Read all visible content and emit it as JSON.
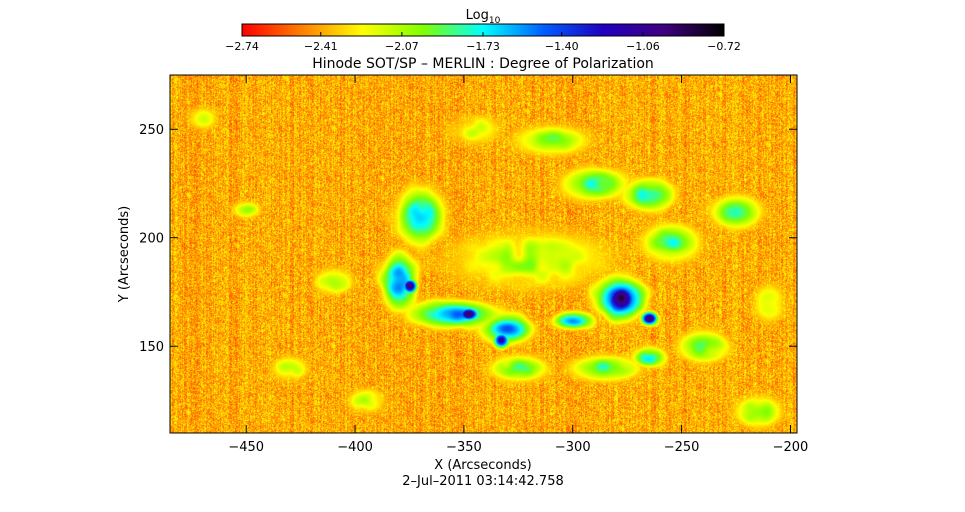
{
  "chart_data": {
    "type": "heatmap",
    "title": "Hinode SOT/SP – MERLIN : Degree of Polarization",
    "xlabel": "X (Arcseconds)",
    "ylabel": "Y (Arcseconds)",
    "xlim": [
      -485,
      -197
    ],
    "ylim": [
      110,
      275
    ],
    "x_ticks": [
      -450,
      -400,
      -350,
      -300,
      -250,
      -200
    ],
    "x_tick_labels": [
      "−450",
      "−400",
      "−350",
      "−300",
      "−250",
      "−200"
    ],
    "y_ticks": [
      150,
      200,
      250
    ],
    "y_tick_labels": [
      "150",
      "200",
      "250"
    ],
    "colorbar": {
      "label_main": "Log",
      "label_sub": "10",
      "placement": "top",
      "min": -2.74,
      "max": -0.72,
      "tick_values": [
        -2.74,
        -2.41,
        -2.07,
        -1.73,
        -1.4,
        -1.06,
        -0.72
      ],
      "tick_labels": [
        "−2.74",
        "−2.41",
        "−2.07",
        "−1.73",
        "−1.40",
        "−1.06",
        "−0.72"
      ],
      "colors": [
        "#ff0000",
        "#ff8000",
        "#ffff00",
        "#80ff00",
        "#00ffff",
        "#0060ff",
        "#2000c0",
        "#400080",
        "#000000"
      ]
    },
    "features": [
      {
        "x": -320,
        "y": 190,
        "rx": 55,
        "ry": 20,
        "level": 0.32
      },
      {
        "x": -370,
        "y": 210,
        "rx": 14,
        "ry": 16,
        "level": 0.55
      },
      {
        "x": -380,
        "y": 180,
        "rx": 10,
        "ry": 16,
        "level": 0.62
      },
      {
        "x": -375,
        "y": 178,
        "rx": 4,
        "ry": 4,
        "level": 0.9
      },
      {
        "x": -355,
        "y": 165,
        "rx": 25,
        "ry": 8,
        "level": 0.58
      },
      {
        "x": -348,
        "y": 165,
        "rx": 6,
        "ry": 4,
        "level": 0.85
      },
      {
        "x": -330,
        "y": 158,
        "rx": 14,
        "ry": 8,
        "level": 0.62
      },
      {
        "x": -333,
        "y": 153,
        "rx": 4,
        "ry": 4,
        "level": 0.85
      },
      {
        "x": -325,
        "y": 140,
        "rx": 18,
        "ry": 8,
        "level": 0.42
      },
      {
        "x": -278,
        "y": 172,
        "rx": 14,
        "ry": 12,
        "level": 0.7
      },
      {
        "x": -278,
        "y": 172,
        "rx": 8,
        "ry": 8,
        "level": 0.95
      },
      {
        "x": -265,
        "y": 163,
        "rx": 5,
        "ry": 4,
        "level": 0.85
      },
      {
        "x": -300,
        "y": 162,
        "rx": 12,
        "ry": 5,
        "level": 0.58
      },
      {
        "x": -285,
        "y": 140,
        "rx": 22,
        "ry": 8,
        "level": 0.42
      },
      {
        "x": -265,
        "y": 145,
        "rx": 10,
        "ry": 6,
        "level": 0.5
      },
      {
        "x": -240,
        "y": 150,
        "rx": 16,
        "ry": 10,
        "level": 0.42
      },
      {
        "x": -255,
        "y": 198,
        "rx": 18,
        "ry": 12,
        "level": 0.42
      },
      {
        "x": -225,
        "y": 212,
        "rx": 15,
        "ry": 10,
        "level": 0.45
      },
      {
        "x": -290,
        "y": 225,
        "rx": 20,
        "ry": 10,
        "level": 0.45
      },
      {
        "x": -265,
        "y": 220,
        "rx": 16,
        "ry": 10,
        "level": 0.48
      },
      {
        "x": -310,
        "y": 245,
        "rx": 25,
        "ry": 10,
        "level": 0.35
      },
      {
        "x": -345,
        "y": 250,
        "rx": 18,
        "ry": 10,
        "level": 0.3
      },
      {
        "x": -410,
        "y": 180,
        "rx": 12,
        "ry": 8,
        "level": 0.38
      },
      {
        "x": -430,
        "y": 140,
        "rx": 12,
        "ry": 8,
        "level": 0.33
      },
      {
        "x": -450,
        "y": 213,
        "rx": 10,
        "ry": 6,
        "level": 0.3
      },
      {
        "x": -470,
        "y": 255,
        "rx": 10,
        "ry": 8,
        "level": 0.3
      },
      {
        "x": -395,
        "y": 125,
        "rx": 12,
        "ry": 8,
        "level": 0.33
      },
      {
        "x": -215,
        "y": 120,
        "rx": 15,
        "ry": 10,
        "level": 0.38
      },
      {
        "x": -210,
        "y": 170,
        "rx": 10,
        "ry": 12,
        "level": 0.35
      }
    ]
  },
  "footer": {
    "timestamp": "2–Jul–2011 03:14:42.758"
  }
}
